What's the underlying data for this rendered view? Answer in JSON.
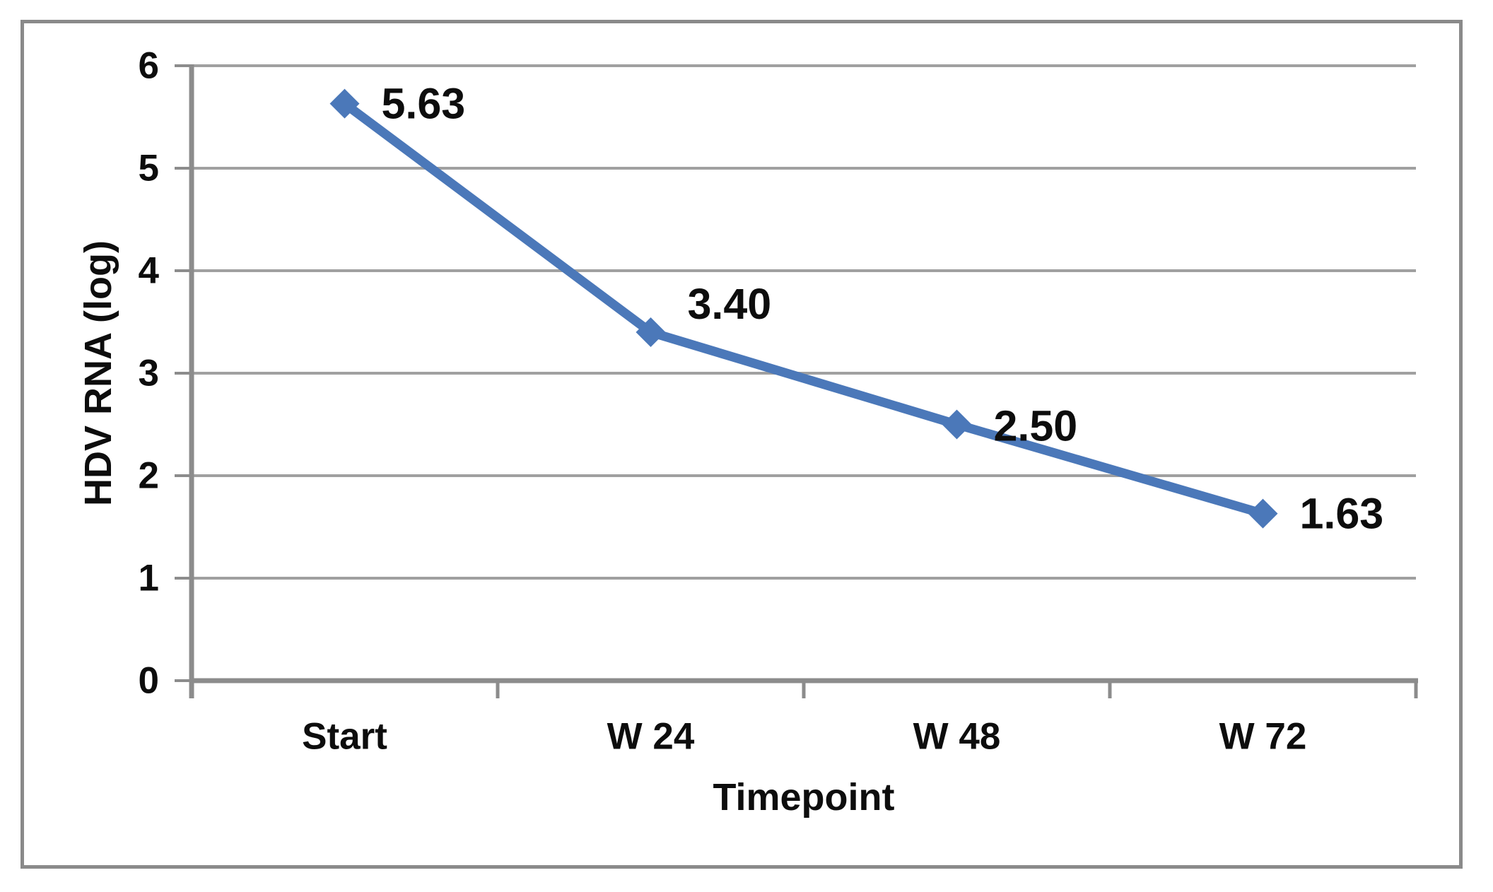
{
  "chart_data": {
    "type": "line",
    "title": "",
    "xlabel": "Timepoint",
    "ylabel": "HDV RNA (log)",
    "categories": [
      "Start",
      "W 24",
      "W 48",
      "W 72"
    ],
    "series": [
      {
        "name": "HDV RNA (log)",
        "values": [
          5.63,
          3.4,
          2.5,
          1.63
        ]
      }
    ],
    "data_labels": [
      "5.63",
      "3.40",
      "2.50",
      "1.63"
    ],
    "yticks": [
      "0",
      "1",
      "2",
      "3",
      "4",
      "5",
      "6"
    ],
    "ylim": [
      0,
      6
    ],
    "ytick_step": 1,
    "grid": true,
    "legend_position": "none",
    "marker": "diamond",
    "colors": {
      "line": "#4b78b9",
      "marker": "#4b78b9",
      "grid": "#a0a0a0",
      "axis": "#8c8c8c",
      "frame": "#8a8a8a",
      "text": "#0d0d0d",
      "background": "#ffffff"
    }
  }
}
